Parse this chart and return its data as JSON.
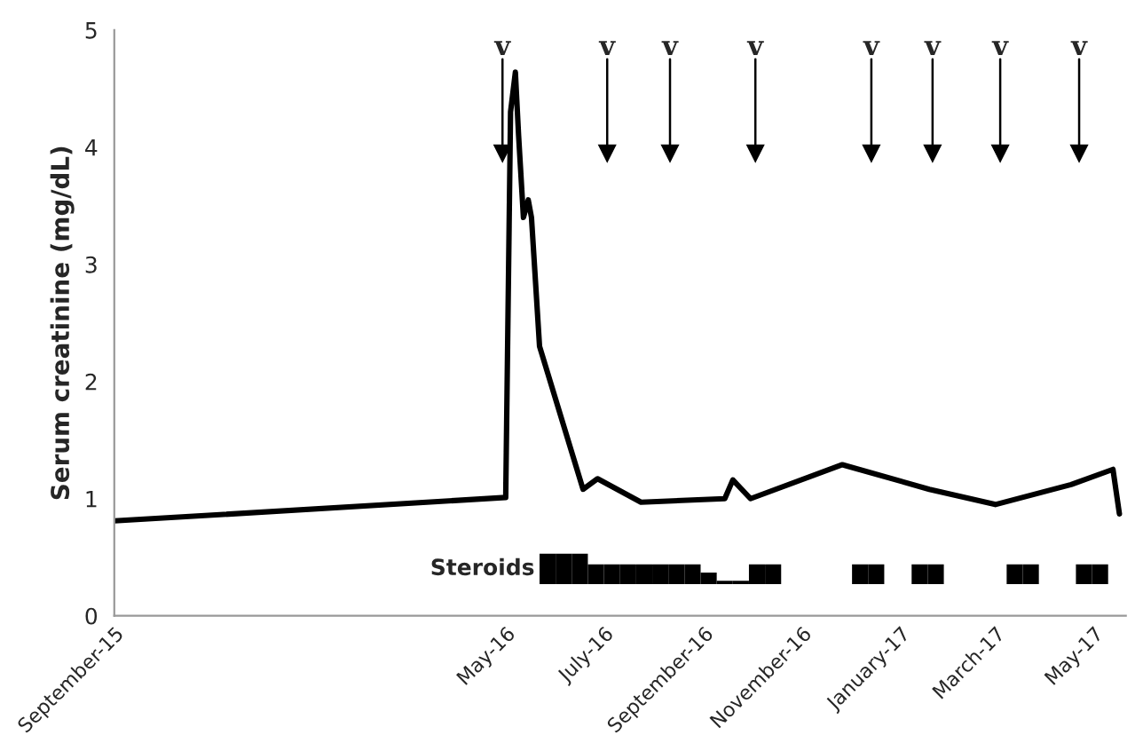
{
  "chart_data": {
    "type": "line",
    "ylabel": "Serum creatinine (mg/dL)",
    "xlim": [
      "2015-09-01",
      "2017-05-21"
    ],
    "xticks": [
      {
        "value": "2015-09-01",
        "label": "September-15"
      },
      {
        "value": "2016-05-01",
        "label": "May-16"
      },
      {
        "value": "2016-07-01",
        "label": "July-16"
      },
      {
        "value": "2016-09-01",
        "label": "September-16"
      },
      {
        "value": "2016-11-01",
        "label": "November-16"
      },
      {
        "value": "2017-01-01",
        "label": "January-17"
      },
      {
        "value": "2017-03-01",
        "label": "March-17"
      },
      {
        "value": "2017-05-01",
        "label": "May-17"
      }
    ],
    "ylim": [
      0,
      5
    ],
    "yticks": [
      0,
      1,
      2,
      3,
      4,
      5
    ],
    "grid": false,
    "legend": false,
    "series": [
      {
        "color": "#000000",
        "x": [
          "2015-09-01",
          "2016-05-01",
          "2016-05-04",
          "2016-05-07",
          "2016-05-09",
          "2016-05-12",
          "2016-05-15",
          "2016-05-17",
          "2016-05-22",
          "2016-06-18",
          "2016-06-27",
          "2016-07-24",
          "2016-09-14",
          "2016-09-19",
          "2016-09-30",
          "2016-11-26",
          "2017-01-19",
          "2017-03-01",
          "2017-04-17",
          "2017-05-13",
          "2017-05-17"
        ],
        "values": [
          0.81,
          1.01,
          4.3,
          4.64,
          4.1,
          3.4,
          3.55,
          3.4,
          2.3,
          1.08,
          1.17,
          0.97,
          1.0,
          1.16,
          1.0,
          1.29,
          1.08,
          0.95,
          1.12,
          1.25,
          0.87
        ]
      },
      {
        "type": "bar",
        "color": "#000000",
        "x": [
          "2016-05-27",
          "2016-06-06",
          "2016-06-16",
          "2016-06-26",
          "2016-07-06",
          "2016-07-16",
          "2016-07-26",
          "2016-08-05",
          "2016-08-15",
          "2016-08-25",
          "2016-09-04",
          "2016-09-14",
          "2016-09-24",
          "2016-10-04",
          "2016-10-14",
          "2016-12-07",
          "2016-12-17",
          "2017-01-13",
          "2017-01-23",
          "2017-03-13",
          "2017-03-23",
          "2017-04-25",
          "2017-05-05"
        ],
        "base": [
          0.27,
          0.27,
          0.27,
          0.27,
          0.27,
          0.27,
          0.27,
          0.27,
          0.27,
          0.27,
          0.27,
          0.27,
          0.27,
          0.27,
          0.27,
          0.27,
          0.27,
          0.27,
          0.27,
          0.27,
          0.27,
          0.27,
          0.27
        ],
        "values": [
          0.26,
          0.26,
          0.26,
          0.17,
          0.17,
          0.17,
          0.17,
          0.17,
          0.17,
          0.17,
          0.1,
          0.03,
          0.03,
          0.17,
          0.17,
          0.17,
          0.17,
          0.17,
          0.17,
          0.17,
          0.17,
          0.17,
          0.17
        ]
      }
    ],
    "annotations": [
      "Steroids"
    ],
    "ref_lines": [
      {
        "axis": "x",
        "value": "2016-04-29",
        "label": "v"
      },
      {
        "axis": "x",
        "value": "2016-07-03",
        "label": "v"
      },
      {
        "axis": "x",
        "value": "2016-08-11",
        "label": "v"
      },
      {
        "axis": "x",
        "value": "2016-10-03",
        "label": "v"
      },
      {
        "axis": "x",
        "value": "2016-12-14",
        "label": "v"
      },
      {
        "axis": "x",
        "value": "2017-01-21",
        "label": "v"
      },
      {
        "axis": "x",
        "value": "2017-03-04",
        "label": "v"
      },
      {
        "axis": "x",
        "value": "2017-04-22",
        "label": "v"
      }
    ]
  }
}
